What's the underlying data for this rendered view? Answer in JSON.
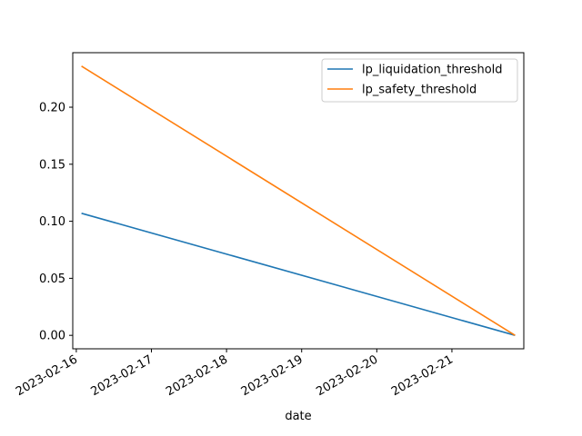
{
  "chart_data": {
    "type": "line",
    "title": "",
    "xlabel": "date",
    "ylabel": "",
    "x_ticks": [
      "2023-02-16",
      "2023-02-17",
      "2023-02-18",
      "2023-02-19",
      "2023-02-20",
      "2023-02-21"
    ],
    "y_ticks": [
      "0.00",
      "0.05",
      "0.10",
      "0.15",
      "0.20"
    ],
    "ylim": [
      -0.0118,
      0.2478
    ],
    "xlim": [
      "2023-02-15 22:52",
      "2023-02-21 22:58"
    ],
    "grid": false,
    "legend_position": "top-right",
    "series": [
      {
        "name": "lp_liquidation_threshold",
        "color": "#1f77b4",
        "points": [
          {
            "x": "2023-02-16 01:40",
            "y": 0.107
          },
          {
            "x": "2023-02-21 20:10",
            "y": 0.0
          }
        ]
      },
      {
        "name": "lp_safety_threshold",
        "color": "#ff7f0e",
        "points": [
          {
            "x": "2023-02-16 01:40",
            "y": 0.236
          },
          {
            "x": "2023-02-21 20:10",
            "y": 0.0
          }
        ]
      }
    ]
  }
}
